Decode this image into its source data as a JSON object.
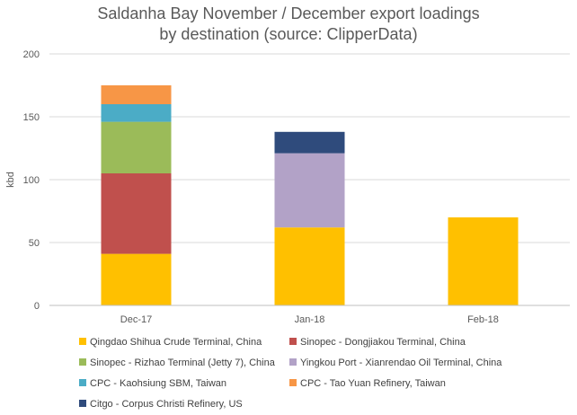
{
  "chart_data": {
    "type": "bar",
    "stacked": true,
    "title_lines": [
      "Saldanha Bay November / December export loadings",
      "by destination (source: ClipperData)"
    ],
    "ylabel": "kbd",
    "xlabel": "",
    "ylim": [
      0,
      200
    ],
    "yticks": [
      0,
      50,
      100,
      150,
      200
    ],
    "grid": true,
    "legend_position": "bottom",
    "categories": [
      "Dec-17",
      "Jan-18",
      "Feb-18"
    ],
    "series": [
      {
        "name": "Qingdao Shihua Crude Terminal, China",
        "color": "#FFC000",
        "values": [
          41,
          62,
          70
        ]
      },
      {
        "name": "Sinopec - Dongjiakou Terminal, China",
        "color": "#C0504D",
        "values": [
          64,
          0,
          0
        ]
      },
      {
        "name": "Sinopec - Rizhao Terminal (Jetty 7), China",
        "color": "#9BBB59",
        "values": [
          41,
          0,
          0
        ]
      },
      {
        "name": "Yingkou Port - Xianrendao Oil Terminal, China",
        "color": "#B2A2C7",
        "values": [
          0,
          59,
          0
        ]
      },
      {
        "name": "CPC - Kaohsiung SBM, Taiwan",
        "color": "#4BACC6",
        "values": [
          14,
          0,
          0
        ]
      },
      {
        "name": "CPC - Tao Yuan Refinery, Taiwan",
        "color": "#F79646",
        "values": [
          15,
          0,
          0
        ]
      },
      {
        "name": "Citgo - Corpus Christi Refinery, US",
        "color": "#2F4B7C",
        "values": [
          0,
          17,
          0
        ]
      }
    ]
  }
}
